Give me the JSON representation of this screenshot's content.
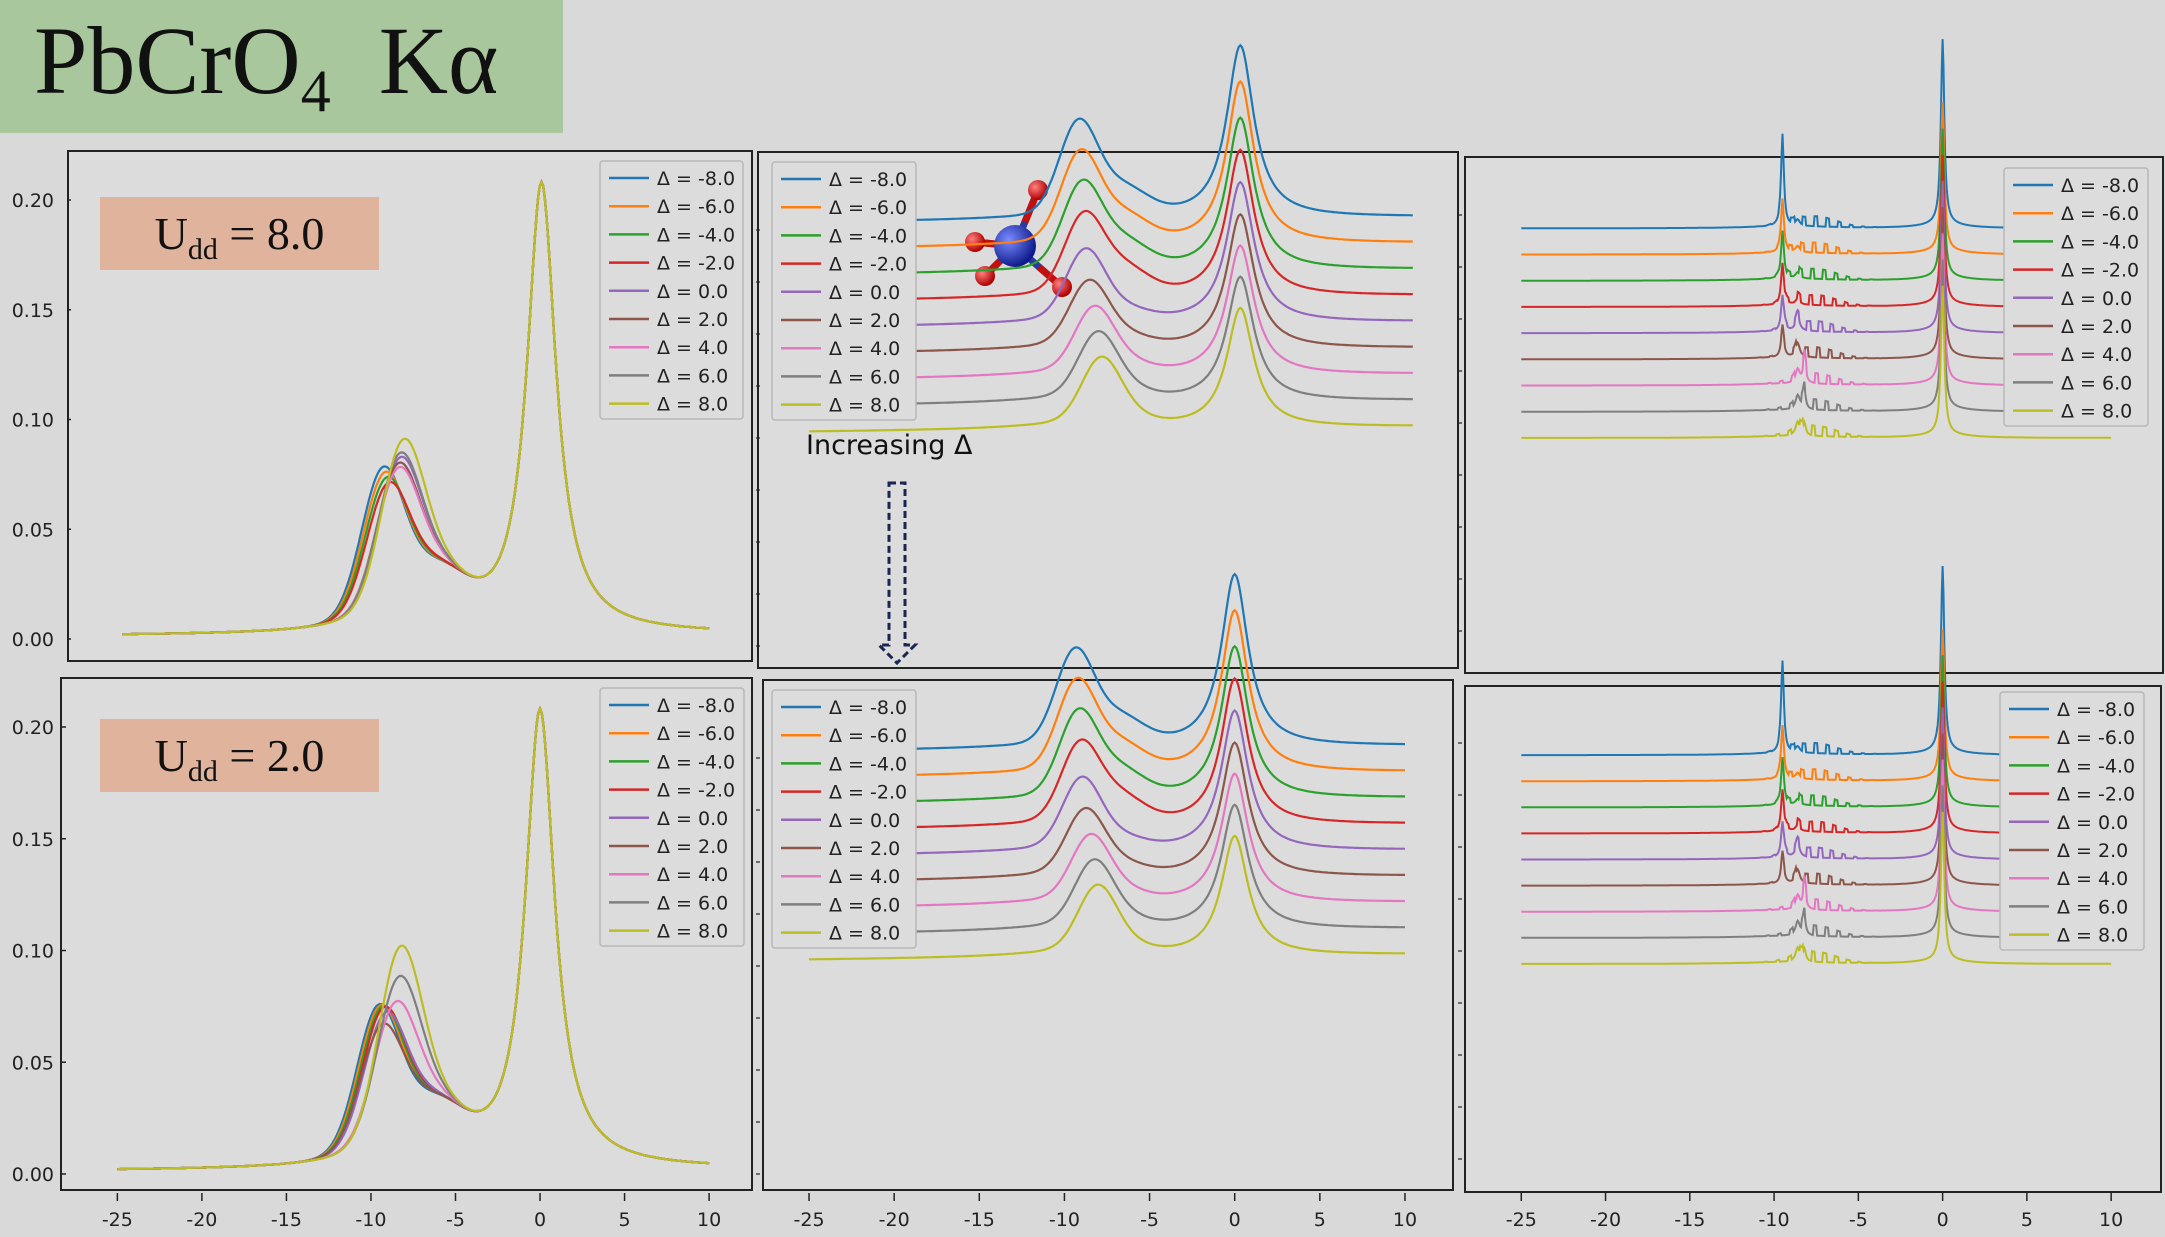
{
  "title": {
    "main": "PbCrO",
    "sub": "4",
    "suffix": "Kα"
  },
  "annotations": {
    "udd_top": {
      "prefix": "U",
      "sub": "dd",
      "suffix": " = 8.0"
    },
    "udd_bottom": {
      "prefix": "U",
      "sub": "dd",
      "suffix": " = 2.0"
    },
    "increasing": "Increasing Δ"
  },
  "colors": [
    "#1f77b4",
    "#ff7f0e",
    "#2ca02c",
    "#d62728",
    "#9467bd",
    "#8c564b",
    "#e377c2",
    "#7f7f7f",
    "#bcbd22"
  ],
  "legend_labels": [
    "Δ = -8.0",
    "Δ = -6.0",
    "Δ = -4.0",
    "Δ = -2.0",
    "Δ = 0.0",
    "Δ = 2.0",
    "Δ = 4.0",
    "Δ = 6.0",
    "Δ = 8.0"
  ],
  "chart_data": [
    {
      "type": "line",
      "panel": "top-left",
      "variant": "overlay",
      "xlim": [
        -26.5,
        11
      ],
      "ylim": [
        -0.01,
        0.222
      ],
      "xticks": [],
      "yticks": [
        0.0,
        0.05,
        0.1,
        0.15,
        0.2
      ],
      "ytick_labels": [
        "0.00",
        "0.05",
        "0.10",
        "0.15",
        "0.20"
      ],
      "legend": "top-right",
      "series": [
        {
          "name": "Δ = -8.0",
          "peak_x": -9.5,
          "peak_y": 0.08
        },
        {
          "name": "Δ = -6.0",
          "peak_x": -9.4,
          "peak_y": 0.077
        },
        {
          "name": "Δ = -4.0",
          "peak_x": -9.3,
          "peak_y": 0.074
        },
        {
          "name": "Δ = -2.0",
          "peak_x": -9.2,
          "peak_y": 0.071
        },
        {
          "name": "Δ = 0.0",
          "peak_x": -8.5,
          "peak_y": 0.078
        },
        {
          "name": "Δ = 2.0",
          "peak_x": -8.6,
          "peak_y": 0.076
        },
        {
          "name": "Δ = 4.0",
          "peak_x": -8.6,
          "peak_y": 0.074
        },
        {
          "name": "Δ = 6.0",
          "peak_x": -8.5,
          "peak_y": 0.08
        },
        {
          "name": "Δ = 8.0",
          "peak_x": -8.3,
          "peak_y": 0.085
        }
      ],
      "main_peak": {
        "x": 0,
        "y": 0.21
      }
    },
    {
      "type": "line",
      "panel": "top-middle",
      "variant": "stacked",
      "xlim": [
        -26,
        11
      ],
      "ylim": [
        0,
        1
      ],
      "xticks": [],
      "legend": "top-left",
      "series": [
        {
          "name": "Δ = -8.0",
          "peak_x": -9.4
        },
        {
          "name": "Δ = -6.0",
          "peak_x": -9.3
        },
        {
          "name": "Δ = -4.0",
          "peak_x": -9.2
        },
        {
          "name": "Δ = -2.0",
          "peak_x": -9.1
        },
        {
          "name": "Δ = 0.0",
          "peak_x": -9.0
        },
        {
          "name": "Δ = 2.0",
          "peak_x": -8.8
        },
        {
          "name": "Δ = 4.0",
          "peak_x": -8.5
        },
        {
          "name": "Δ = 6.0",
          "peak_x": -8.3
        },
        {
          "name": "Δ = 8.0",
          "peak_x": -8.1
        }
      ]
    },
    {
      "type": "line",
      "panel": "top-right",
      "variant": "sticks",
      "xlim": [
        -26.5,
        11
      ],
      "ylim": [
        0,
        1
      ],
      "xticks": [],
      "legend": "top-right",
      "series": [
        {
          "name": "Δ = -8.0"
        },
        {
          "name": "Δ = -6.0"
        },
        {
          "name": "Δ = -4.0"
        },
        {
          "name": "Δ = -2.0"
        },
        {
          "name": "Δ = 0.0"
        },
        {
          "name": "Δ = 2.0"
        },
        {
          "name": "Δ = 4.0"
        },
        {
          "name": "Δ = 6.0"
        },
        {
          "name": "Δ = 8.0"
        }
      ]
    },
    {
      "type": "line",
      "panel": "bottom-left",
      "variant": "overlay",
      "xlim": [
        -26.5,
        11
      ],
      "ylim": [
        -0.01,
        0.222
      ],
      "xticks": [
        -25,
        -20,
        -15,
        -10,
        -5,
        0,
        5,
        10
      ],
      "xtick_labels": [
        "-25",
        "-20",
        "-15",
        "-10",
        "-5",
        "0",
        "5",
        "10"
      ],
      "yticks": [
        0.0,
        0.05,
        0.1,
        0.15,
        0.2
      ],
      "ytick_labels": [
        "0.00",
        "0.05",
        "0.10",
        "0.15",
        "0.20"
      ],
      "legend": "top-right",
      "series": [
        {
          "name": "Δ = -8.0",
          "peak_x": -9.6,
          "peak_y": 0.078
        },
        {
          "name": "Δ = -6.0",
          "peak_x": -9.5,
          "peak_y": 0.077
        },
        {
          "name": "Δ = -4.0",
          "peak_x": -9.4,
          "peak_y": 0.076
        },
        {
          "name": "Δ = -2.0",
          "peak_x": -9.3,
          "peak_y": 0.075
        },
        {
          "name": "Δ = 0.0",
          "peak_x": -9.2,
          "peak_y": 0.072
        },
        {
          "name": "Δ = 2.0",
          "peak_x": -9.4,
          "peak_y": 0.068
        },
        {
          "name": "Δ = 4.0",
          "peak_x": -8.6,
          "peak_y": 0.073
        },
        {
          "name": "Δ = 6.0",
          "peak_x": -8.4,
          "peak_y": 0.083
        },
        {
          "name": "Δ = 8.0",
          "peak_x": -8.3,
          "peak_y": 0.096
        }
      ],
      "main_peak": {
        "x": 0,
        "y": 0.21
      }
    },
    {
      "type": "line",
      "panel": "bottom-middle",
      "variant": "stacked",
      "xlim": [
        -26,
        11
      ],
      "ylim": [
        0,
        1
      ],
      "xticks": [
        -25,
        -20,
        -15,
        -10,
        -5,
        0,
        5,
        10
      ],
      "xtick_labels": [
        "-25",
        "-20",
        "-15",
        "-10",
        "-5",
        "0",
        "5",
        "10"
      ],
      "legend": "top-left",
      "series": [
        {
          "name": "Δ = -8.0",
          "peak_x": -9.4
        },
        {
          "name": "Δ = -6.0",
          "peak_x": -9.3
        },
        {
          "name": "Δ = -4.0",
          "peak_x": -9.2
        },
        {
          "name": "Δ = -2.0",
          "peak_x": -9.1
        },
        {
          "name": "Δ = 0.0",
          "peak_x": -9.0
        },
        {
          "name": "Δ = 2.0",
          "peak_x": -8.8
        },
        {
          "name": "Δ = 4.0",
          "peak_x": -8.5
        },
        {
          "name": "Δ = 6.0",
          "peak_x": -8.3
        },
        {
          "name": "Δ = 8.0",
          "peak_x": -8.1
        }
      ]
    },
    {
      "type": "line",
      "panel": "bottom-right",
      "variant": "sticks",
      "xlim": [
        -26.5,
        11
      ],
      "ylim": [
        0,
        1
      ],
      "xticks": [
        -25,
        -20,
        -15,
        -10,
        -5,
        0,
        5,
        10
      ],
      "xtick_labels": [
        "-25",
        "-20",
        "-15",
        "-10",
        "-5",
        "0",
        "5",
        "10"
      ],
      "legend": "top-right",
      "series": [
        {
          "name": "Δ = -8.0"
        },
        {
          "name": "Δ = -6.0"
        },
        {
          "name": "Δ = -4.0"
        },
        {
          "name": "Δ = -2.0"
        },
        {
          "name": "Δ = 0.0"
        },
        {
          "name": "Δ = 2.0"
        },
        {
          "name": "Δ = 4.0"
        },
        {
          "name": "Δ = 6.0"
        },
        {
          "name": "Δ = 8.0"
        }
      ]
    }
  ]
}
